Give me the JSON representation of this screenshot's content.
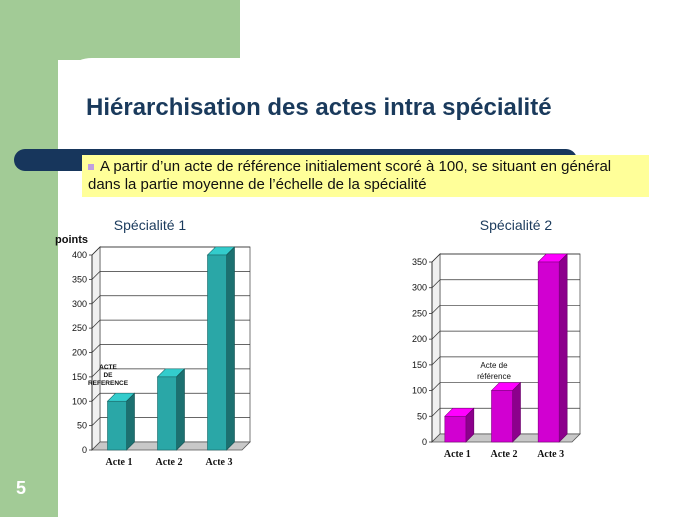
{
  "slide": {
    "title": "Hiérarchisation des actes intra spécialité",
    "bullet": "A partir d’un acte de référence initialement scoré à 100, se situant en général dans la partie moyenne de l’échelle de la spécialité",
    "page_number": "5"
  },
  "colors": {
    "green_band": "#a2cb96",
    "title": "#1a3a5c",
    "rule": "#17365c",
    "highlight": "#ffff99",
    "series1": "#33cccc",
    "series2": "#ff00ff"
  },
  "chart_data": [
    {
      "type": "bar",
      "title": "Spécialité 1",
      "ylabel": "points",
      "categories": [
        "Acte 1",
        "Acte 2",
        "Acte 3"
      ],
      "values": [
        100,
        150,
        400
      ],
      "ylim": [
        0,
        400
      ],
      "yticks": [
        0,
        50,
        100,
        150,
        200,
        250,
        300,
        350,
        400
      ],
      "grid": true,
      "annotation": "ACTE DE REFERENCE",
      "color": "#33cccc"
    },
    {
      "type": "bar",
      "title": "Spécialité 2",
      "categories": [
        "Acte 1",
        "Acte 2",
        "Acte 3"
      ],
      "values": [
        50,
        100,
        350
      ],
      "ylim": [
        0,
        350
      ],
      "yticks": [
        0,
        50,
        100,
        150,
        200,
        250,
        300,
        350
      ],
      "grid": true,
      "annotation": "Acte de référence",
      "color": "#ff00ff"
    }
  ]
}
